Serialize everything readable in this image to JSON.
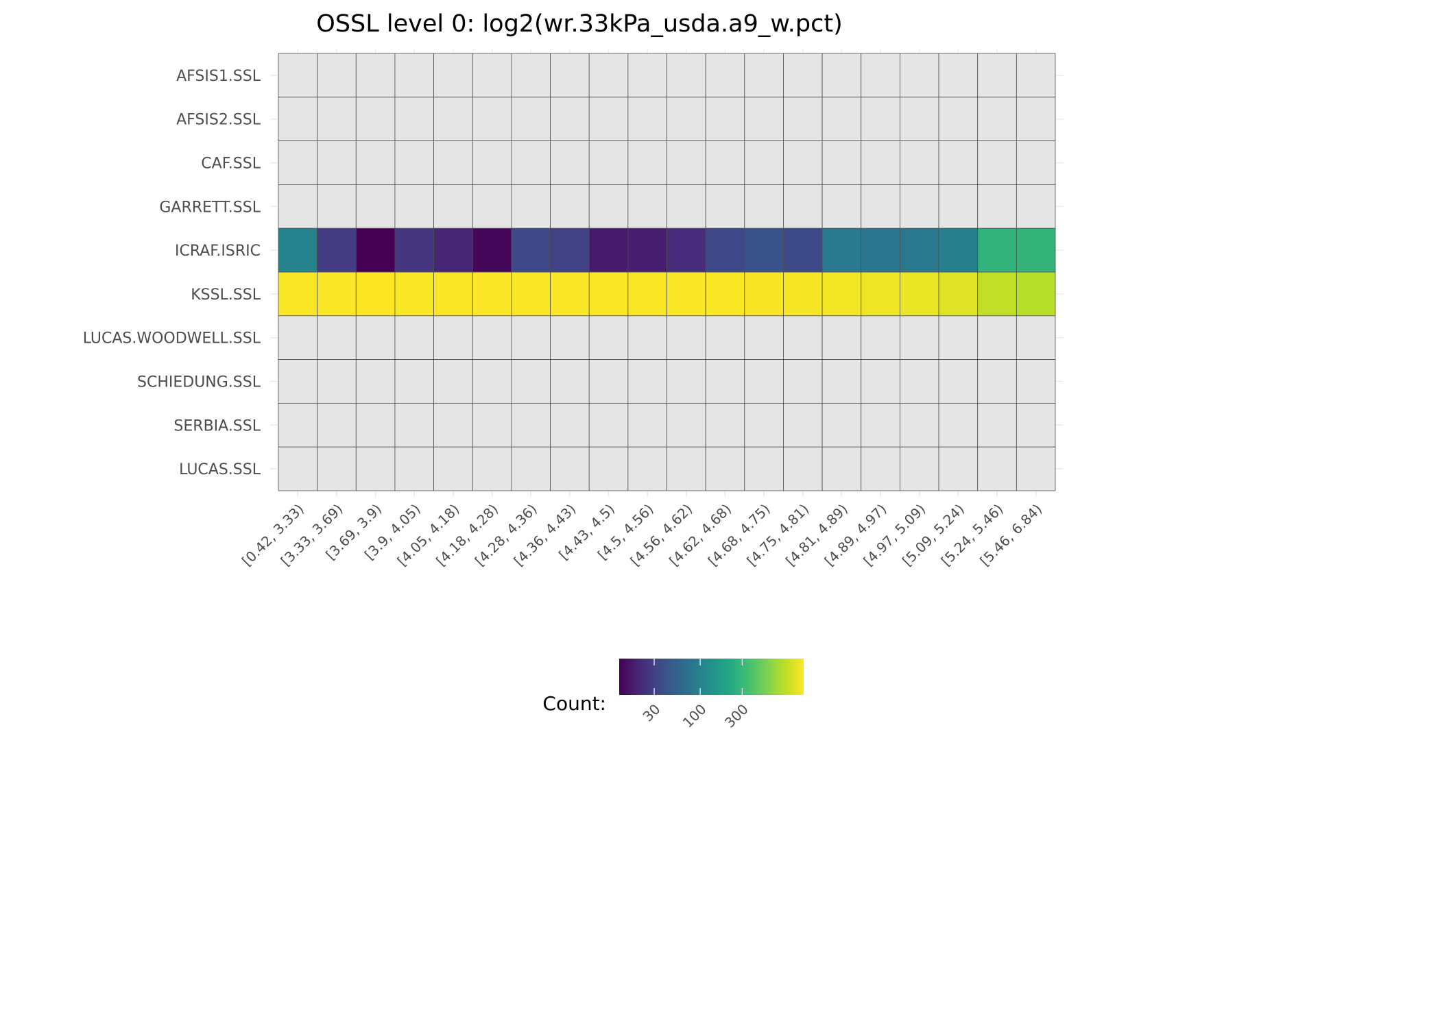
{
  "chart_data": {
    "type": "heatmap",
    "title": "OSSL level 0: log2(wr.33kPa_usda.a9_w.pct)",
    "xlabel": "",
    "ylabel": "",
    "x_categories": [
      "[0.42, 3.33)",
      "[3.33, 3.69)",
      "[3.69, 3.9)",
      "[3.9, 4.05)",
      "[4.05, 4.18)",
      "[4.18, 4.28)",
      "[4.28, 4.36)",
      "[4.36, 4.43)",
      "[4.43, 4.5)",
      "[4.5, 4.56)",
      "[4.56, 4.62)",
      "[4.62, 4.68)",
      "[4.68, 4.75)",
      "[4.75, 4.81)",
      "[4.81, 4.89)",
      "[4.89, 4.97)",
      "[4.97, 5.09)",
      "[5.09, 5.24)",
      "[5.24, 5.46)",
      "[5.46, 6.84)"
    ],
    "y_categories": [
      "AFSIS1.SSL",
      "AFSIS2.SSL",
      "CAF.SSL",
      "GARRETT.SSL",
      "ICRAF.ISRIC",
      "KSSL.SSL",
      "LUCAS.WOODWELL.SSL",
      "SCHIEDUNG.SSL",
      "SERBIA.SSL",
      "LUCAS.SSL"
    ],
    "values": [
      [
        null,
        null,
        null,
        null,
        null,
        null,
        null,
        null,
        null,
        null,
        null,
        null,
        null,
        null,
        null,
        null,
        null,
        null,
        null,
        null
      ],
      [
        null,
        null,
        null,
        null,
        null,
        null,
        null,
        null,
        null,
        null,
        null,
        null,
        null,
        null,
        null,
        null,
        null,
        null,
        null,
        null
      ],
      [
        null,
        null,
        null,
        null,
        null,
        null,
        null,
        null,
        null,
        null,
        null,
        null,
        null,
        null,
        null,
        null,
        null,
        null,
        null,
        null
      ],
      [
        null,
        null,
        null,
        null,
        null,
        null,
        null,
        null,
        null,
        null,
        null,
        null,
        null,
        null,
        null,
        null,
        null,
        null,
        null,
        null
      ],
      [
        100,
        28,
        12,
        26,
        20,
        13,
        34,
        30,
        17,
        18,
        22,
        34,
        42,
        35,
        85,
        80,
        82,
        95,
        270,
        275
      ],
      [
        1450,
        1480,
        1500,
        1470,
        1460,
        1480,
        1460,
        1470,
        1450,
        1460,
        1470,
        1450,
        1440,
        1430,
        1380,
        1340,
        1300,
        1200,
        950,
        880
      ],
      [
        null,
        null,
        null,
        null,
        null,
        null,
        null,
        null,
        null,
        null,
        null,
        null,
        null,
        null,
        null,
        null,
        null,
        null,
        null,
        null
      ],
      [
        null,
        null,
        null,
        null,
        null,
        null,
        null,
        null,
        null,
        null,
        null,
        null,
        null,
        null,
        null,
        null,
        null,
        null,
        null,
        null
      ],
      [
        null,
        null,
        null,
        null,
        null,
        null,
        null,
        null,
        null,
        null,
        null,
        null,
        null,
        null,
        null,
        null,
        null,
        null,
        null,
        null
      ],
      [
        null,
        null,
        null,
        null,
        null,
        null,
        null,
        null,
        null,
        null,
        null,
        null,
        null,
        null,
        null,
        null,
        null,
        null,
        null,
        null
      ]
    ],
    "color_scale": {
      "name": "viridis",
      "transform": "log10",
      "range": [
        12,
        1500
      ],
      "na_color": "#e5e5e5",
      "stops": [
        "#440154",
        "#482475",
        "#414487",
        "#355f8d",
        "#2a788e",
        "#21918c",
        "#22a884",
        "#44bf70",
        "#7ad151",
        "#bddf26",
        "#fde725"
      ]
    },
    "legend": {
      "title": "Count:",
      "position": "bottom",
      "ticks": [
        30,
        100,
        300
      ],
      "tick_labels": [
        "30",
        "100",
        "300"
      ]
    },
    "grid": true
  }
}
